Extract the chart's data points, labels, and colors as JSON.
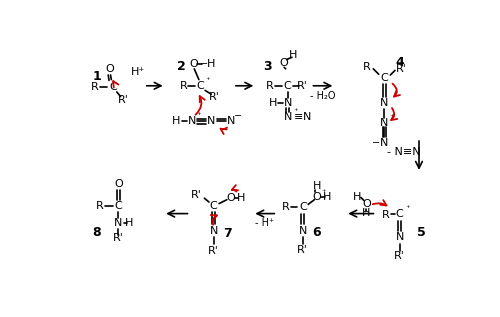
{
  "bg_color": "#ffffff",
  "red_color": "#cc0000",
  "black": "#000000",
  "figsize": [
    5.0,
    3.17
  ],
  "dpi": 100,
  "note_h2o": "- H₂O",
  "note_nen": "- N≡N",
  "note_minus_hplus": "- H⁺"
}
